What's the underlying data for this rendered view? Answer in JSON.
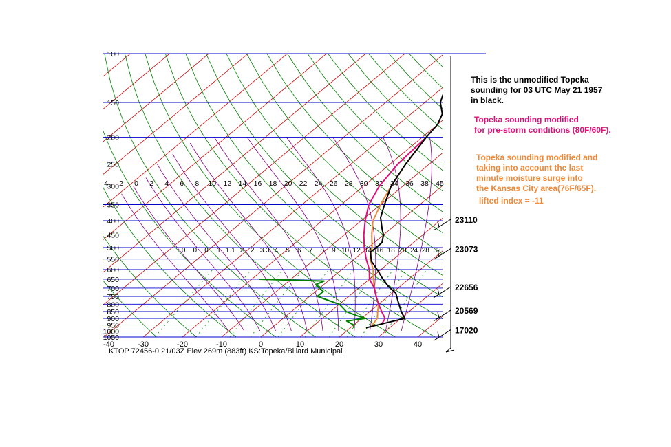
{
  "notes": {
    "unmodified": [
      "This is the unmodified Topeka",
      "sounding for 03 UTC May 21  1957",
      "in black."
    ],
    "pre_storm": [
      "Topeka sounding modified",
      "for pre-storm conditions (80F/60F)."
    ],
    "moisture_surge": [
      "Topeka sounding modified and",
      "taking into account the last",
      "minute moisture surge into",
      "the Kansas City area(76F/65F)."
    ],
    "lifted_index": "lifted index = -11"
  },
  "footer": "KTOP 72456-0 21/03Z  Elev 269m (883ft) KS:Topeka/Billard Municipal",
  "colors": {
    "isobar": "#0000cc",
    "dry_adiabat": "#008000",
    "isotherm": "#cc0000",
    "mixing_ratio": "#00a000",
    "moist_adiabat": "#800080",
    "unmodified": "#000000",
    "pre_storm": "#e0107a",
    "moisture_surge": "#ef8a3a",
    "dewpoint": "#008000"
  },
  "chart_data": {
    "type": "line",
    "title": "",
    "xlabel": "",
    "ylabel": "",
    "pressure_levels": [
      "100",
      "150",
      "200",
      "250",
      "300",
      "350",
      "400",
      "450",
      "500",
      "550",
      "600",
      "650",
      "700",
      "750",
      "800",
      "850",
      "900",
      "950",
      "1000",
      "1050"
    ],
    "temperature_ticks": [
      "-40",
      "-30",
      "-20",
      "-10",
      "0",
      "10",
      "20",
      "30",
      "40"
    ],
    "top_scale_labels": [
      "4",
      "2",
      "0",
      "2",
      "4",
      "6",
      "8",
      "10",
      "12",
      "14",
      "16",
      "18",
      "20",
      "22",
      "24",
      "26",
      "28",
      "30",
      "32",
      "34",
      "36",
      "38",
      "45"
    ],
    "mixing_ratio_labels": [
      "0.",
      "0.",
      "0.",
      "1",
      "1.1",
      "2",
      "2.",
      "3.3",
      "4",
      "5",
      "6",
      "7",
      "8",
      "9",
      "10",
      "12",
      "14",
      "16",
      "18",
      "20",
      "24",
      "28",
      "32"
    ],
    "height_labels": [
      {
        "label": "23110",
        "pressure": 400
      },
      {
        "label": "23073",
        "pressure": 510
      },
      {
        "label": "22656",
        "pressure": 700
      },
      {
        "label": "20569",
        "pressure": 850
      },
      {
        "label": "17020",
        "pressure": 1000
      }
    ],
    "series": [
      {
        "key": "unmodified",
        "points": [
          [
            24,
            973
          ],
          [
            28,
            930
          ],
          [
            31,
            900
          ],
          [
            28,
            850
          ],
          [
            24,
            780
          ],
          [
            21,
            730
          ],
          [
            17,
            690
          ],
          [
            13,
            645
          ],
          [
            9,
            600
          ],
          [
            5,
            560
          ],
          [
            2,
            520
          ],
          [
            2,
            480
          ],
          [
            0,
            450
          ],
          [
            -2,
            430
          ],
          [
            -6,
            390
          ],
          [
            -9,
            350
          ],
          [
            -13,
            300
          ],
          [
            -16,
            250
          ],
          [
            -19,
            200
          ],
          [
            -20,
            180
          ],
          [
            -22,
            165
          ],
          [
            -26,
            150
          ],
          [
            -32,
            120
          ]
        ]
      },
      {
        "key": "pre_storm",
        "points": [
          [
            27,
            950
          ],
          [
            26,
            900
          ],
          [
            23,
            850
          ],
          [
            20,
            800
          ],
          [
            17,
            750
          ],
          [
            14,
            700
          ],
          [
            10,
            650
          ],
          [
            7,
            600
          ],
          [
            3,
            550
          ],
          [
            -1,
            500
          ],
          [
            -5,
            450
          ],
          [
            -9,
            400
          ],
          [
            -13,
            350
          ],
          [
            -16,
            300
          ],
          [
            -18,
            250
          ],
          [
            -19,
            200
          ]
        ]
      },
      {
        "key": "moisture_surge",
        "points": [
          [
            25,
            965
          ],
          [
            24,
            900
          ],
          [
            22,
            850
          ],
          [
            20,
            800
          ],
          [
            17,
            750
          ],
          [
            14,
            700
          ],
          [
            11,
            650
          ],
          [
            8,
            600
          ],
          [
            4,
            550
          ],
          [
            1,
            500
          ],
          [
            -3,
            450
          ],
          [
            -7,
            400
          ],
          [
            -10,
            350
          ],
          [
            -13,
            300
          ],
          [
            -16,
            250
          ],
          [
            -19,
            200
          ]
        ]
      },
      {
        "key": "dewpoint",
        "points": [
          [
            21,
            975
          ],
          [
            20,
            950
          ],
          [
            17,
            920
          ],
          [
            21,
            900
          ],
          [
            18,
            880
          ],
          [
            14,
            850
          ],
          [
            10,
            800
          ],
          [
            2,
            750
          ],
          [
            2,
            720
          ],
          [
            0,
            700
          ],
          [
            -2,
            680
          ],
          [
            -1,
            660
          ],
          [
            -18,
            650
          ]
        ]
      }
    ]
  }
}
